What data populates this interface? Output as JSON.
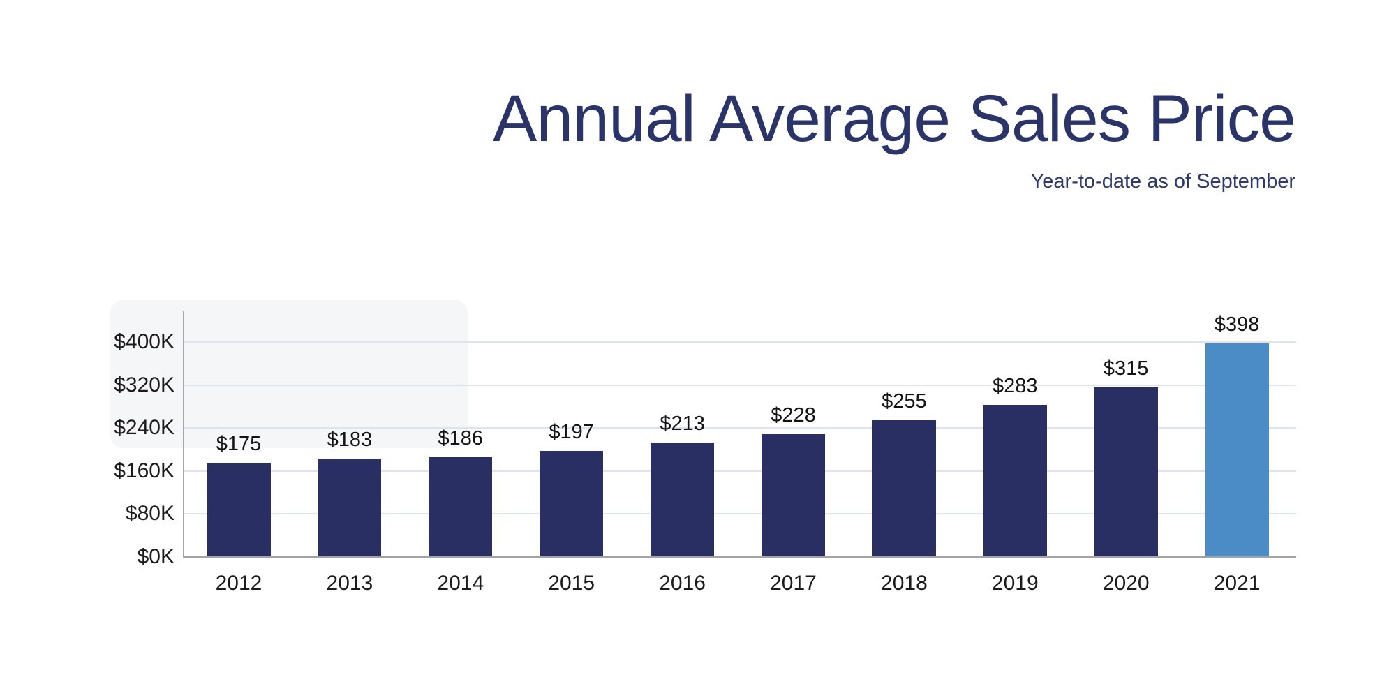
{
  "slide": {
    "title": "Annual Average Sales Price",
    "subtitle": "Year-to-date as of September"
  },
  "chart_data": {
    "type": "bar",
    "title": "Annual Average Sales Price",
    "subtitle": "Year-to-date as of September",
    "categories": [
      "2012",
      "2013",
      "2014",
      "2015",
      "2016",
      "2017",
      "2018",
      "2019",
      "2020",
      "2021"
    ],
    "values": [
      175,
      183,
      186,
      197,
      213,
      228,
      255,
      283,
      315,
      398
    ],
    "value_labels": [
      "$175",
      "$183",
      "$186",
      "$197",
      "$213",
      "$228",
      "$255",
      "$283",
      "$315",
      "$398"
    ],
    "values_unit": "thousands of dollars",
    "xlabel": "",
    "ylabel": "",
    "ylim": [
      0,
      457
    ],
    "yticks": [
      0,
      80,
      160,
      240,
      320,
      400
    ],
    "ytick_labels": [
      "$0K",
      "$80K",
      "$160K",
      "$240K",
      "$320K",
      "$400K"
    ],
    "grid": true,
    "legend": false,
    "bar_color": "#292f63",
    "highlight_color": "#4b8cc6",
    "highlight_index": 9,
    "gridline_color": "#dde4f0",
    "axis_color": "#a3a3a6",
    "title_color": "#2b3468",
    "label_color": "#141414"
  }
}
